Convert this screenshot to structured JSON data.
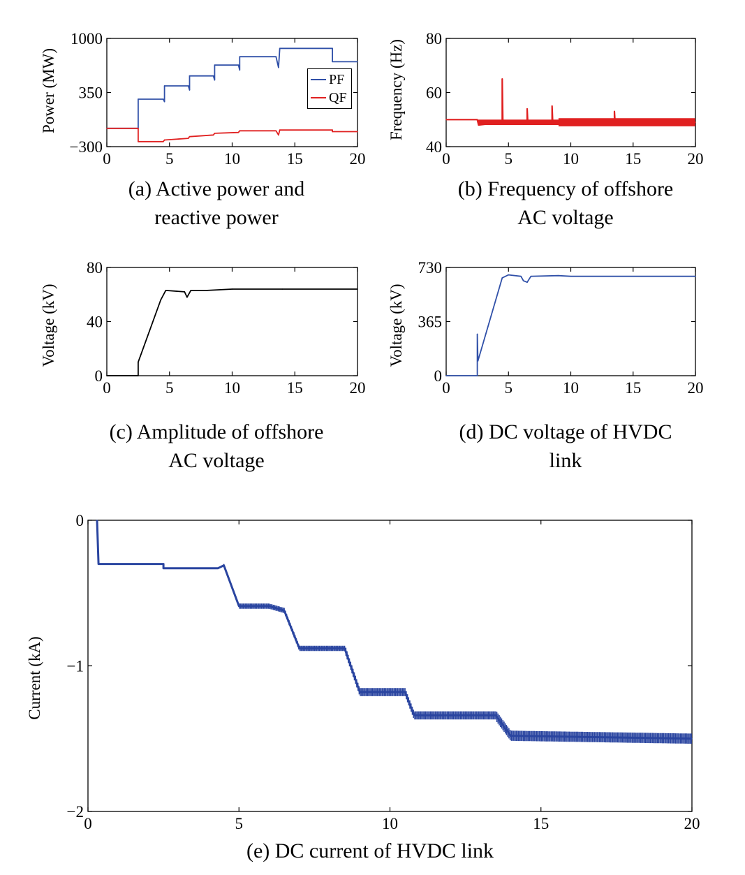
{
  "charts": {
    "a": {
      "type": "line",
      "caption_line1": "(a) Active power and",
      "caption_line2": "reactive power",
      "ylabel": "Power (MW)",
      "xlim": [
        0,
        20
      ],
      "ylim": [
        -300,
        1000
      ],
      "yticks": [
        "1000",
        "350",
        "−300"
      ],
      "ytick_values": [
        1000,
        350,
        -300
      ],
      "xticks": [
        "0",
        "5",
        "10",
        "15",
        "20"
      ],
      "xtick_values": [
        0,
        5,
        10,
        15,
        20
      ],
      "legend": [
        "PF",
        "QF"
      ],
      "colors": {
        "PF": "#3050a8",
        "QF": "#e02020"
      }
    },
    "b": {
      "type": "line",
      "caption_line1": "(b) Frequency of offshore",
      "caption_line2": "AC voltage",
      "ylabel": "Frequency (Hz)",
      "xlim": [
        0,
        20
      ],
      "ylim": [
        40,
        80
      ],
      "yticks": [
        "80",
        "60",
        "40"
      ],
      "ytick_values": [
        80,
        60,
        40
      ],
      "xticks": [
        "0",
        "5",
        "10",
        "15",
        "20"
      ],
      "xtick_values": [
        0,
        5,
        10,
        15,
        20
      ],
      "colors": {
        "line": "#e02020"
      }
    },
    "c": {
      "type": "line",
      "caption_line1": "(c) Amplitude of offshore",
      "caption_line2": "AC voltage",
      "ylabel": "Voltage (kV)",
      "xlim": [
        0,
        20
      ],
      "ylim": [
        0,
        80
      ],
      "yticks": [
        "80",
        "40",
        "0"
      ],
      "ytick_values": [
        80,
        40,
        0
      ],
      "xticks": [
        "0",
        "5",
        "10",
        "15",
        "20"
      ],
      "xtick_values": [
        0,
        5,
        10,
        15,
        20
      ],
      "colors": {
        "line": "#000000"
      }
    },
    "d": {
      "type": "line",
      "caption_line1": "(d) DC voltage of HVDC",
      "caption_line2": "link",
      "ylabel": "Voltage (kV)",
      "xlim": [
        0,
        20
      ],
      "ylim": [
        0,
        730
      ],
      "yticks": [
        "730",
        "365",
        "0"
      ],
      "ytick_values": [
        730,
        365,
        0
      ],
      "xticks": [
        "0",
        "5",
        "10",
        "15",
        "20"
      ],
      "xtick_values": [
        0,
        5,
        10,
        15,
        20
      ],
      "colors": {
        "line": "#3050a8"
      }
    },
    "e": {
      "type": "line",
      "caption_line1": "(e) DC current of HVDC link",
      "ylabel": "Current (kA)",
      "xlim": [
        0,
        20
      ],
      "ylim": [
        -2,
        0
      ],
      "yticks": [
        "0",
        "−1",
        "−2"
      ],
      "ytick_values": [
        0,
        -1,
        -2
      ],
      "xticks": [
        "0",
        "5",
        "10",
        "15",
        "20"
      ],
      "xtick_values": [
        0,
        5,
        10,
        15,
        20
      ],
      "colors": {
        "line": "#2a45a0"
      }
    }
  },
  "chart_data": [
    {
      "id": "a",
      "type": "line",
      "title": "(a) Active power and reactive power",
      "xlabel": "",
      "ylabel": "Power (MW)",
      "xlim": [
        0,
        20
      ],
      "ylim": [
        -300,
        1000
      ],
      "series": [
        {
          "name": "PF",
          "x": [
            0,
            2.5,
            2.5,
            4.5,
            4.6,
            4.6,
            6.5,
            6.6,
            6.6,
            8.5,
            8.6,
            8.6,
            10.5,
            10.6,
            10.6,
            13.5,
            13.7,
            13.8,
            18,
            18,
            20
          ],
          "y": [
            -80,
            -80,
            270,
            270,
            240,
            430,
            430,
            380,
            550,
            550,
            500,
            680,
            680,
            620,
            780,
            780,
            650,
            880,
            880,
            720,
            720
          ]
        },
        {
          "name": "QF",
          "x": [
            0,
            2.5,
            2.5,
            4.5,
            4.6,
            6.5,
            6.6,
            8.5,
            8.6,
            10.5,
            10.6,
            13.5,
            13.7,
            13.8,
            18,
            18,
            20
          ],
          "y": [
            -80,
            -80,
            -240,
            -240,
            -220,
            -200,
            -180,
            -160,
            -140,
            -130,
            -110,
            -110,
            -160,
            -100,
            -100,
            -120,
            -120
          ]
        }
      ]
    },
    {
      "id": "b",
      "type": "line",
      "title": "(b) Frequency of offshore AC voltage",
      "ylabel": "Frequency (Hz)",
      "xlim": [
        0,
        20
      ],
      "ylim": [
        40,
        80
      ],
      "series": [
        {
          "name": "Frequency",
          "x": [
            0,
            2.5,
            2.6,
            4.5,
            4.5,
            4.55,
            6.5,
            6.5,
            6.55,
            8.5,
            8.5,
            8.55,
            13.5,
            13.5,
            13.55,
            20
          ],
          "y": [
            50,
            50,
            48,
            49,
            65,
            49,
            49,
            54,
            49,
            49,
            55,
            49,
            49,
            53,
            49,
            49
          ]
        }
      ]
    },
    {
      "id": "c",
      "type": "line",
      "title": "(c) Amplitude of offshore AC voltage",
      "ylabel": "Voltage (kV)",
      "xlim": [
        0,
        20
      ],
      "ylim": [
        0,
        80
      ],
      "series": [
        {
          "name": "Voltage",
          "x": [
            0,
            2.5,
            2.5,
            4.3,
            4.7,
            6.2,
            6.4,
            6.7,
            8,
            10,
            14,
            20
          ],
          "y": [
            0,
            0,
            10,
            56,
            63,
            62,
            58,
            63,
            63,
            64,
            64,
            64
          ]
        }
      ]
    },
    {
      "id": "d",
      "type": "line",
      "title": "(d) DC voltage of HVDC link",
      "ylabel": "Voltage (kV)",
      "xlim": [
        0,
        20
      ],
      "ylim": [
        0,
        730
      ],
      "series": [
        {
          "name": "DC voltage",
          "x": [
            0,
            2.5,
            2.5,
            2.55,
            4.5,
            5,
            6,
            6.2,
            6.5,
            6.8,
            9,
            10,
            14,
            20
          ],
          "y": [
            0,
            0,
            280,
            100,
            660,
            680,
            670,
            640,
            630,
            670,
            675,
            670,
            670,
            670
          ]
        }
      ]
    },
    {
      "id": "e",
      "type": "line",
      "title": "(e) DC current of HVDC link",
      "ylabel": "Current (kA)",
      "xlim": [
        0,
        20
      ],
      "ylim": [
        -2,
        0
      ],
      "series": [
        {
          "name": "DC current",
          "x": [
            0.3,
            0.35,
            0.4,
            2.5,
            2.5,
            4.3,
            4.5,
            5,
            6,
            6.5,
            7,
            8.5,
            9,
            10.5,
            10.8,
            13.5,
            14,
            20
          ],
          "y": [
            0,
            -0.3,
            -0.3,
            -0.3,
            -0.33,
            -0.33,
            -0.31,
            -0.59,
            -0.59,
            -0.62,
            -0.88,
            -0.88,
            -1.18,
            -1.18,
            -1.34,
            -1.34,
            -1.48,
            -1.5
          ]
        }
      ]
    }
  ]
}
